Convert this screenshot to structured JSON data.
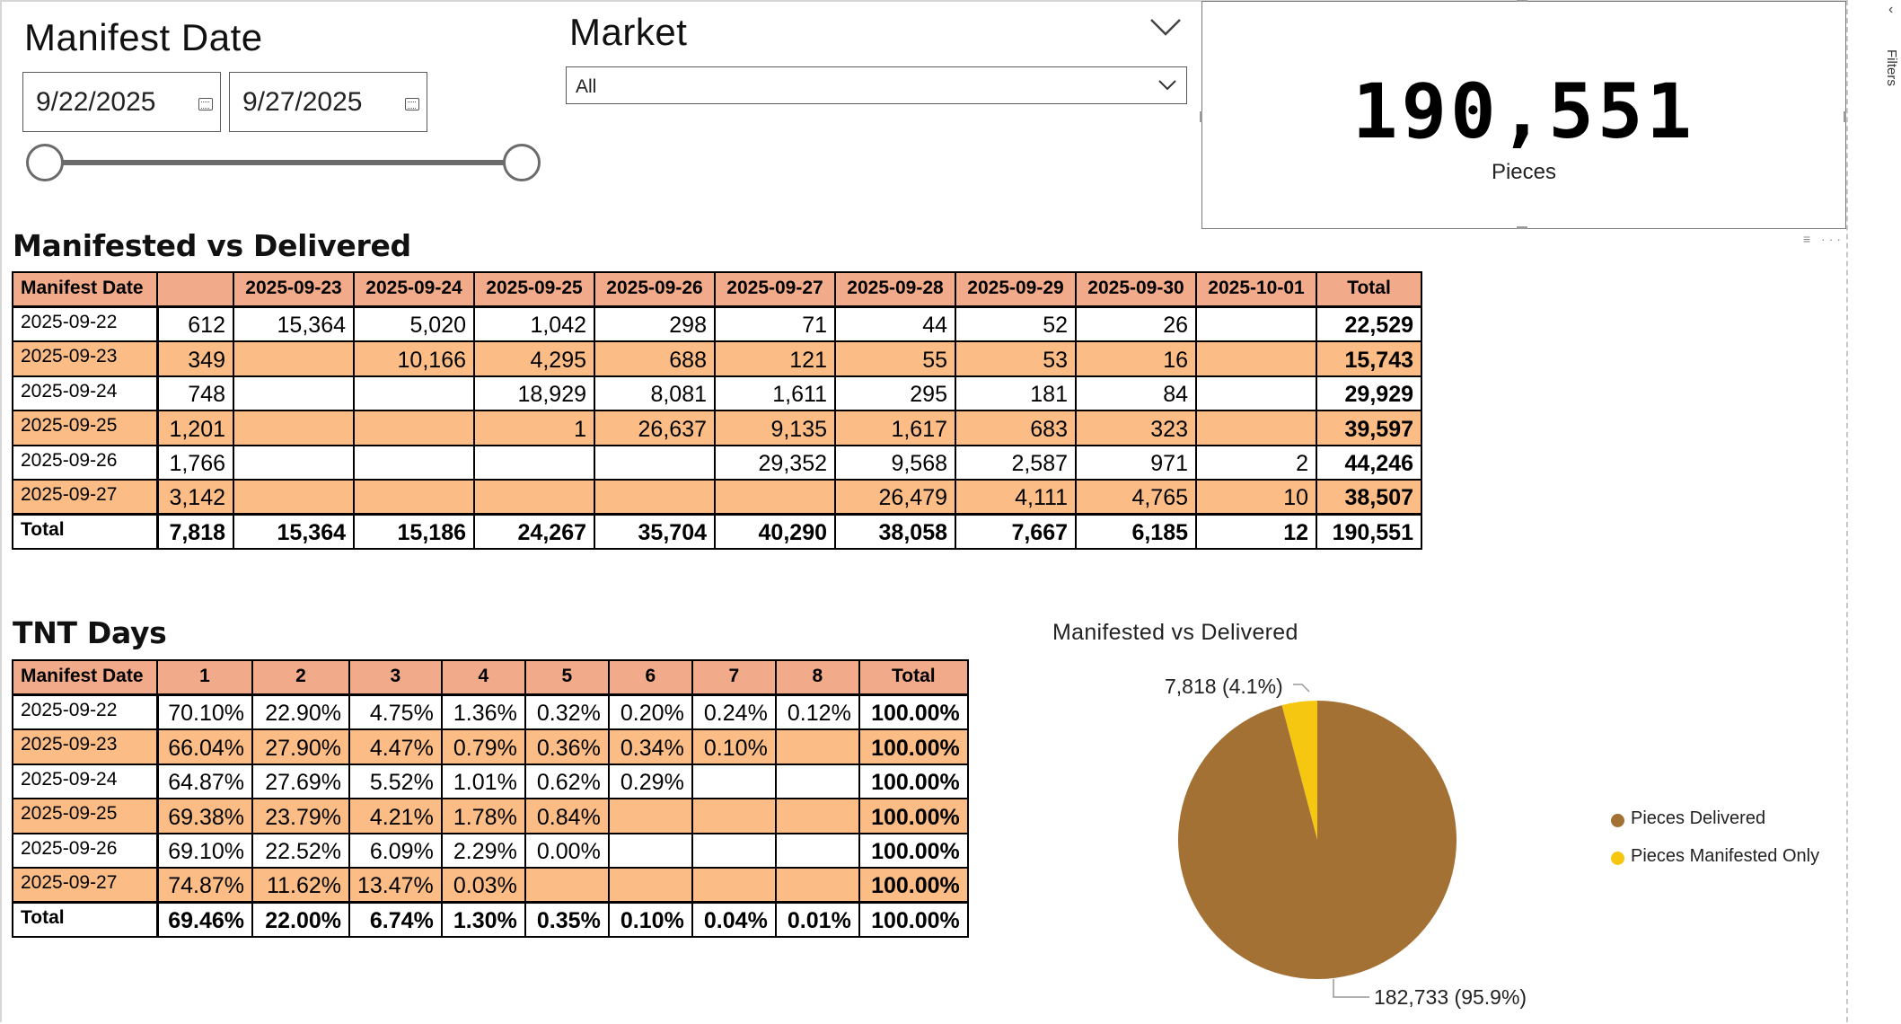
{
  "date_slicer": {
    "title": "Manifest Date",
    "start": "9/22/2025",
    "end": "9/27/2025"
  },
  "market_slicer": {
    "title": "Market",
    "selected": "All"
  },
  "kpi": {
    "value": "190,551",
    "label": "Pieces"
  },
  "filters_pane": {
    "label": "Filters"
  },
  "matrix1": {
    "title": "Manifested vs Delivered",
    "headers": [
      "Manifest Date",
      "",
      "2025-09-23",
      "2025-09-24",
      "2025-09-25",
      "2025-09-26",
      "2025-09-27",
      "2025-09-28",
      "2025-09-29",
      "2025-09-30",
      "2025-10-01",
      "Total"
    ],
    "rows": [
      [
        "2025-09-22",
        "612",
        "15,364",
        "5,020",
        "1,042",
        "298",
        "71",
        "44",
        "52",
        "26",
        "",
        "22,529"
      ],
      [
        "2025-09-23",
        "349",
        "",
        "10,166",
        "4,295",
        "688",
        "121",
        "55",
        "53",
        "16",
        "",
        "15,743"
      ],
      [
        "2025-09-24",
        "748",
        "",
        "",
        "18,929",
        "8,081",
        "1,611",
        "295",
        "181",
        "84",
        "",
        "29,929"
      ],
      [
        "2025-09-25",
        "1,201",
        "",
        "",
        "1",
        "26,637",
        "9,135",
        "1,617",
        "683",
        "323",
        "",
        "39,597"
      ],
      [
        "2025-09-26",
        "1,766",
        "",
        "",
        "",
        "",
        "29,352",
        "9,568",
        "2,587",
        "971",
        "2",
        "44,246"
      ],
      [
        "2025-09-27",
        "3,142",
        "",
        "",
        "",
        "",
        "",
        "26,479",
        "4,111",
        "4,765",
        "10",
        "38,507"
      ]
    ],
    "total_row": [
      "Total",
      "7,818",
      "15,364",
      "15,186",
      "24,267",
      "35,704",
      "40,290",
      "38,058",
      "7,667",
      "6,185",
      "12",
      "190,551"
    ]
  },
  "matrix2": {
    "title": "TNT Days",
    "headers": [
      "Manifest Date",
      "1",
      "2",
      "3",
      "4",
      "5",
      "6",
      "7",
      "8",
      "Total"
    ],
    "rows": [
      [
        "2025-09-22",
        "70.10%",
        "22.90%",
        "4.75%",
        "1.36%",
        "0.32%",
        "0.20%",
        "0.24%",
        "0.12%",
        "100.00%"
      ],
      [
        "2025-09-23",
        "66.04%",
        "27.90%",
        "4.47%",
        "0.79%",
        "0.36%",
        "0.34%",
        "0.10%",
        "",
        "100.00%"
      ],
      [
        "2025-09-24",
        "64.87%",
        "27.69%",
        "5.52%",
        "1.01%",
        "0.62%",
        "0.29%",
        "",
        "",
        "100.00%"
      ],
      [
        "2025-09-25",
        "69.38%",
        "23.79%",
        "4.21%",
        "1.78%",
        "0.84%",
        "",
        "",
        "",
        "100.00%"
      ],
      [
        "2025-09-26",
        "69.10%",
        "22.52%",
        "6.09%",
        "2.29%",
        "0.00%",
        "",
        "",
        "",
        "100.00%"
      ],
      [
        "2025-09-27",
        "74.87%",
        "11.62%",
        "13.47%",
        "0.03%",
        "",
        "",
        "",
        "",
        "100.00%"
      ]
    ],
    "total_row": [
      "Total",
      "69.46%",
      "22.00%",
      "6.74%",
      "1.30%",
      "0.35%",
      "0.10%",
      "0.04%",
      "0.01%",
      "100.00%"
    ]
  },
  "chart_data": {
    "type": "pie",
    "title": "Manifested vs Delivered",
    "categories": [
      "Pieces Delivered",
      "Pieces Manifested Only"
    ],
    "values": [
      182733,
      7818
    ],
    "percents": [
      95.9,
      4.1
    ],
    "data_labels": [
      "182,733 (95.9%)",
      "7,818 (4.1%)"
    ],
    "colors": [
      "#a47134",
      "#f5c710"
    ],
    "legend_position": "right"
  },
  "colors": {
    "header_fill": "#f2ab8a",
    "band_fill": "#fbbd85",
    "pie_delivered": "#a47134",
    "pie_manifested": "#f5c710"
  }
}
